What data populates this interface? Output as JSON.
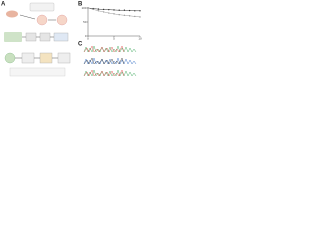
{
  "panels": [
    {
      "label": "A"
    },
    {
      "label": "B"
    },
    {
      "label": "C"
    }
  ],
  "chart_data": {
    "type": "line",
    "x": [
      0,
      1,
      2,
      3,
      4,
      5,
      6,
      7,
      8,
      9,
      10
    ],
    "series": [
      {
        "color": "#333333",
        "values": [
          100,
          98,
          96,
          95,
          94,
          93,
          92,
          92,
          91,
          90,
          90
        ]
      },
      {
        "color": "#9a9a9a",
        "values": [
          100,
          95,
          90,
          86,
          82,
          79,
          76,
          74,
          72,
          70,
          68
        ]
      }
    ],
    "xlim": [
      0,
      10
    ],
    "xticks": [
      0,
      5,
      10
    ],
    "ylim": [
      0,
      100
    ],
    "yticks": [
      0,
      50,
      100
    ]
  }
}
